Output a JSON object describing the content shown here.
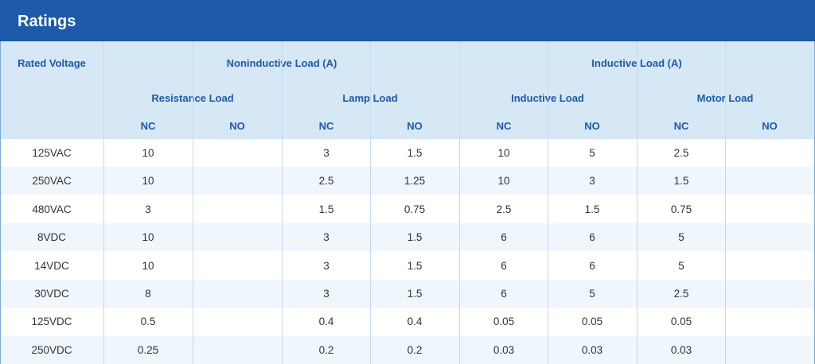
{
  "title": "Ratings",
  "header": {
    "rated_voltage": "Rated Voltage",
    "noninductive": "Noninductive Load (A)",
    "inductive": "Inductive Load (A)",
    "resistance": "Resistance Load",
    "lamp": "Lamp Load",
    "inductive_sub": "Inductive Load",
    "motor": "Motor Load",
    "nc": "NC",
    "no": "NO"
  },
  "rows": [
    {
      "voltage": "125VAC",
      "vals": [
        "10",
        "",
        "3",
        "1.5",
        "10",
        "5",
        "2.5",
        ""
      ]
    },
    {
      "voltage": "250VAC",
      "vals": [
        "10",
        "",
        "2.5",
        "1.25",
        "10",
        "3",
        "1.5",
        ""
      ]
    },
    {
      "voltage": "480VAC",
      "vals": [
        "3",
        "",
        "1.5",
        "0.75",
        "2.5",
        "1.5",
        "0.75",
        ""
      ]
    },
    {
      "voltage": "8VDC",
      "vals": [
        "10",
        "",
        "3",
        "1.5",
        "6",
        "6",
        "5",
        ""
      ]
    },
    {
      "voltage": "14VDC",
      "vals": [
        "10",
        "",
        "3",
        "1.5",
        "6",
        "6",
        "5",
        ""
      ]
    },
    {
      "voltage": "30VDC",
      "vals": [
        "8",
        "",
        "3",
        "1.5",
        "6",
        "5",
        "2.5",
        ""
      ]
    },
    {
      "voltage": "125VDC",
      "vals": [
        "0.5",
        "",
        "0.4",
        "0.4",
        "0.05",
        "0.05",
        "0.05",
        ""
      ]
    },
    {
      "voltage": "250VDC",
      "vals": [
        "0.25",
        "",
        "0.2",
        "0.2",
        "0.03",
        "0.03",
        "0.03",
        ""
      ]
    }
  ]
}
